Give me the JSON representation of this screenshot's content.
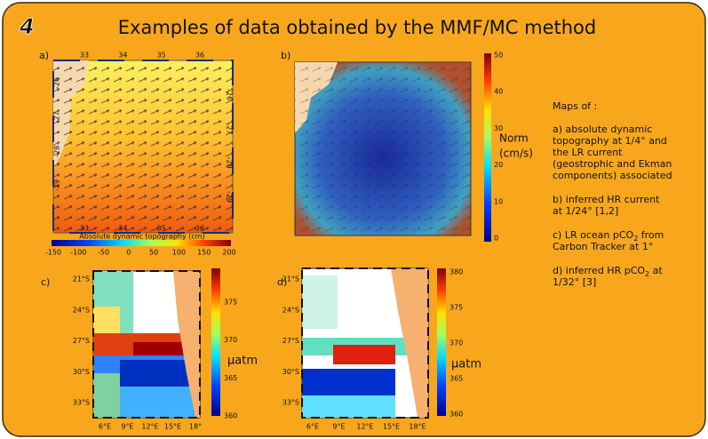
{
  "header": {
    "number": "4",
    "title": "Examples of data obtained by the MMF/MC method"
  },
  "panels": [
    {
      "label": "a)",
      "top_ticks": [
        "33",
        "34",
        "35",
        "36"
      ],
      "bottom_ticks": [
        "33",
        "34",
        "35",
        "36"
      ],
      "left_ticks": [
        "-26",
        "-27",
        "-28",
        "-29"
      ],
      "right_ticks": [
        "-26",
        "-27",
        "-28",
        "-29"
      ],
      "colorbar_ticks": [
        "-150",
        "-100",
        "-50",
        "0",
        "50",
        "100",
        "150",
        "200"
      ],
      "colorbar_title": "Absolute dynamic topography (cm)"
    },
    {
      "label": "b)",
      "colorbar_ticks": [
        "50",
        "40",
        "30",
        "20",
        "10",
        "0"
      ],
      "colorbar_title": [
        "Norm",
        "(cm/s)"
      ]
    },
    {
      "label": "c)",
      "y_ticks": [
        "21°S",
        "24°S",
        "27°S",
        "30°S",
        "33°S"
      ],
      "x_ticks": [
        "6°E",
        "9°E",
        "12°E",
        "15°E",
        "18°"
      ],
      "colorbar_ticks": [
        "375",
        "370",
        "365",
        "360"
      ],
      "colorbar_title": "µatm"
    },
    {
      "label": "d)",
      "y_ticks": [
        "21°S",
        "24°S",
        "27°S",
        "30°S",
        "33°S"
      ],
      "x_ticks": [
        "6°E",
        "9°E",
        "12°E",
        "15°E",
        "18°E"
      ],
      "colorbar_ticks": [
        "380",
        "375",
        "370",
        "365",
        "360"
      ],
      "colorbar_title": "µatm"
    }
  ],
  "side_text": {
    "intro": "Maps of :",
    "items": [
      [
        "a) absolute dynamic",
        "topography at 1/4° and",
        "the LR current",
        "(geostrophic and Ekman",
        "components) associated"
      ],
      [
        "b) inferred HR current",
        "at 1/24° [1,2]"
      ],
      [
        "c) LR ocean pCO",
        "2",
        " from",
        "Carbon Tracker at 1°"
      ],
      [
        "d) inferred HR pCO",
        "2",
        " at",
        "1/32° [3]"
      ]
    ]
  }
}
